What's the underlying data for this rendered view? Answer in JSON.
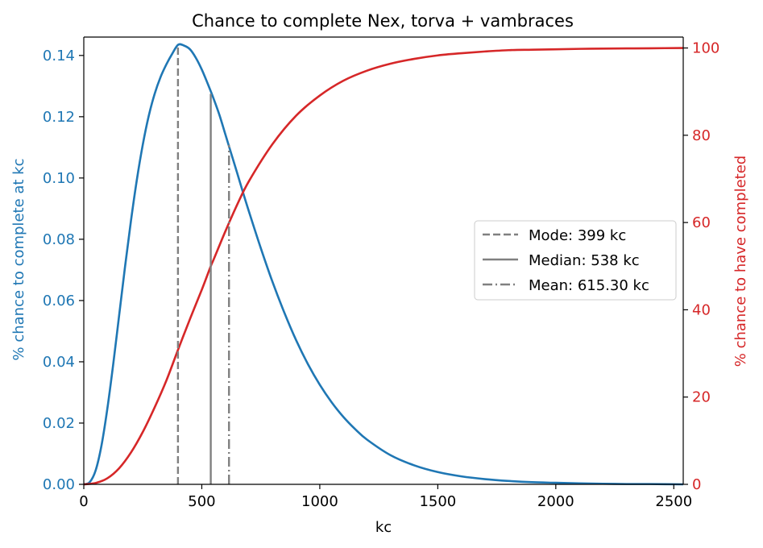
{
  "chart_data": {
    "type": "line",
    "title": "Chance to complete Nex, torva + vambraces",
    "xlabel": "kc",
    "ylabel_left": "% chance to complete at kc",
    "ylabel_right": "% chance to have completed",
    "xlim": [
      0,
      2540
    ],
    "ylim_left": [
      0,
      0.146
    ],
    "ylim_right": [
      0,
      102.5
    ],
    "x_ticks": [
      0,
      500,
      1000,
      1500,
      2000,
      2500
    ],
    "y_left_ticks": [
      0.0,
      0.02,
      0.04,
      0.06,
      0.08,
      0.1,
      0.12,
      0.14
    ],
    "y_left_tick_labels": [
      "0.00",
      "0.02",
      "0.04",
      "0.06",
      "0.08",
      "0.10",
      "0.12",
      "0.14"
    ],
    "y_right_ticks": [
      0,
      20,
      40,
      60,
      80,
      100
    ],
    "series": [
      {
        "name": "% chance to complete at kc",
        "axis": "left",
        "color": "#1f77b4",
        "x": [
          0,
          25,
          50,
          75,
          100,
          125,
          150,
          175,
          200,
          225,
          250,
          275,
          300,
          325,
          350,
          375,
          400,
          425,
          450,
          475,
          500,
          525,
          550,
          575,
          600,
          625,
          650,
          675,
          700,
          750,
          800,
          850,
          900,
          950,
          1000,
          1050,
          1100,
          1150,
          1200,
          1300,
          1400,
          1500,
          1600,
          1700,
          1800,
          1900,
          2000,
          2100,
          2200,
          2300,
          2400,
          2540
        ],
        "values": [
          0.0,
          0.0007,
          0.0045,
          0.0127,
          0.0248,
          0.0394,
          0.0553,
          0.0712,
          0.0861,
          0.0995,
          0.1109,
          0.1202,
          0.1274,
          0.1329,
          0.1371,
          0.1406,
          0.1435,
          0.1432,
          0.142,
          0.1392,
          0.1354,
          0.1308,
          0.1259,
          0.1205,
          0.1142,
          0.1079,
          0.1016,
          0.0952,
          0.089,
          0.0771,
          0.066,
          0.056,
          0.047,
          0.0392,
          0.0325,
          0.0268,
          0.022,
          0.018,
          0.0146,
          0.0095,
          0.0062,
          0.004,
          0.0026,
          0.0017,
          0.0011,
          0.0007,
          0.0005,
          0.0003,
          0.0002,
          0.0001,
          0.0001,
          0.0
        ]
      },
      {
        "name": "% chance to have completed",
        "axis": "right",
        "color": "#d62728",
        "x": [
          0,
          50,
          100,
          150,
          200,
          250,
          300,
          350,
          399,
          450,
          500,
          538,
          550,
          600,
          650,
          700,
          800,
          900,
          1000,
          1100,
          1200,
          1300,
          1400,
          1500,
          1600,
          1700,
          1800,
          1900,
          2000,
          2100,
          2200,
          2300,
          2400,
          2540
        ],
        "values": [
          0.0,
          0.3,
          1.4,
          3.7,
          7.3,
          12.0,
          17.6,
          23.8,
          30.8,
          37.9,
          44.6,
          50.0,
          51.5,
          58.0,
          64.1,
          69.5,
          78.0,
          84.5,
          89.1,
          92.5,
          94.8,
          96.4,
          97.5,
          98.3,
          98.8,
          99.2,
          99.5,
          99.6,
          99.7,
          99.8,
          99.85,
          99.9,
          99.93,
          100.0
        ]
      }
    ],
    "markers": [
      {
        "label": "Mode: 399 kc",
        "x": 399,
        "height": 0.1435,
        "style": "dashed"
      },
      {
        "label": "Median: 538 kc",
        "x": 538,
        "height": 0.1275,
        "style": "solid"
      },
      {
        "label": "Mean: 615.30 kc",
        "x": 615.3,
        "height": 0.1108,
        "style": "dashdot"
      }
    ],
    "marker_color": "#808080",
    "legend_position": "center-right"
  }
}
